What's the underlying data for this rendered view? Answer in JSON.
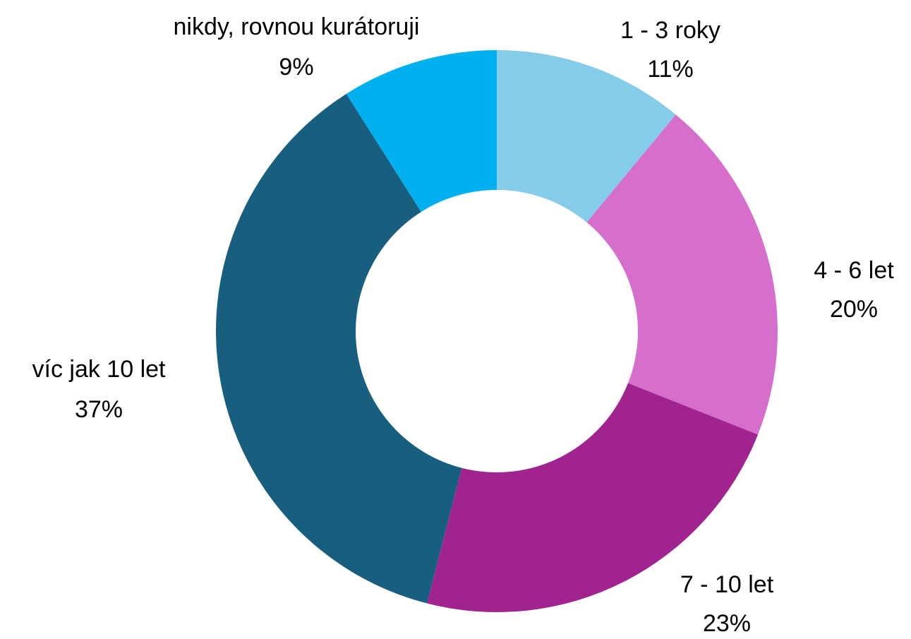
{
  "chart_data": {
    "type": "donut",
    "categories": [
      "1 - 3 roky",
      "4 - 6 let",
      "7 - 10 let",
      "víc jak 10 let",
      "nikdy, rovnou kurátoruji"
    ],
    "values": [
      11,
      20,
      23,
      37,
      9
    ],
    "value_labels": [
      "11%",
      "20%",
      "23%",
      "37%",
      "9%"
    ],
    "colors": [
      "#85cbea",
      "#d56fcb",
      "#a0238f",
      "#175e7f",
      "#03b0ef"
    ]
  }
}
